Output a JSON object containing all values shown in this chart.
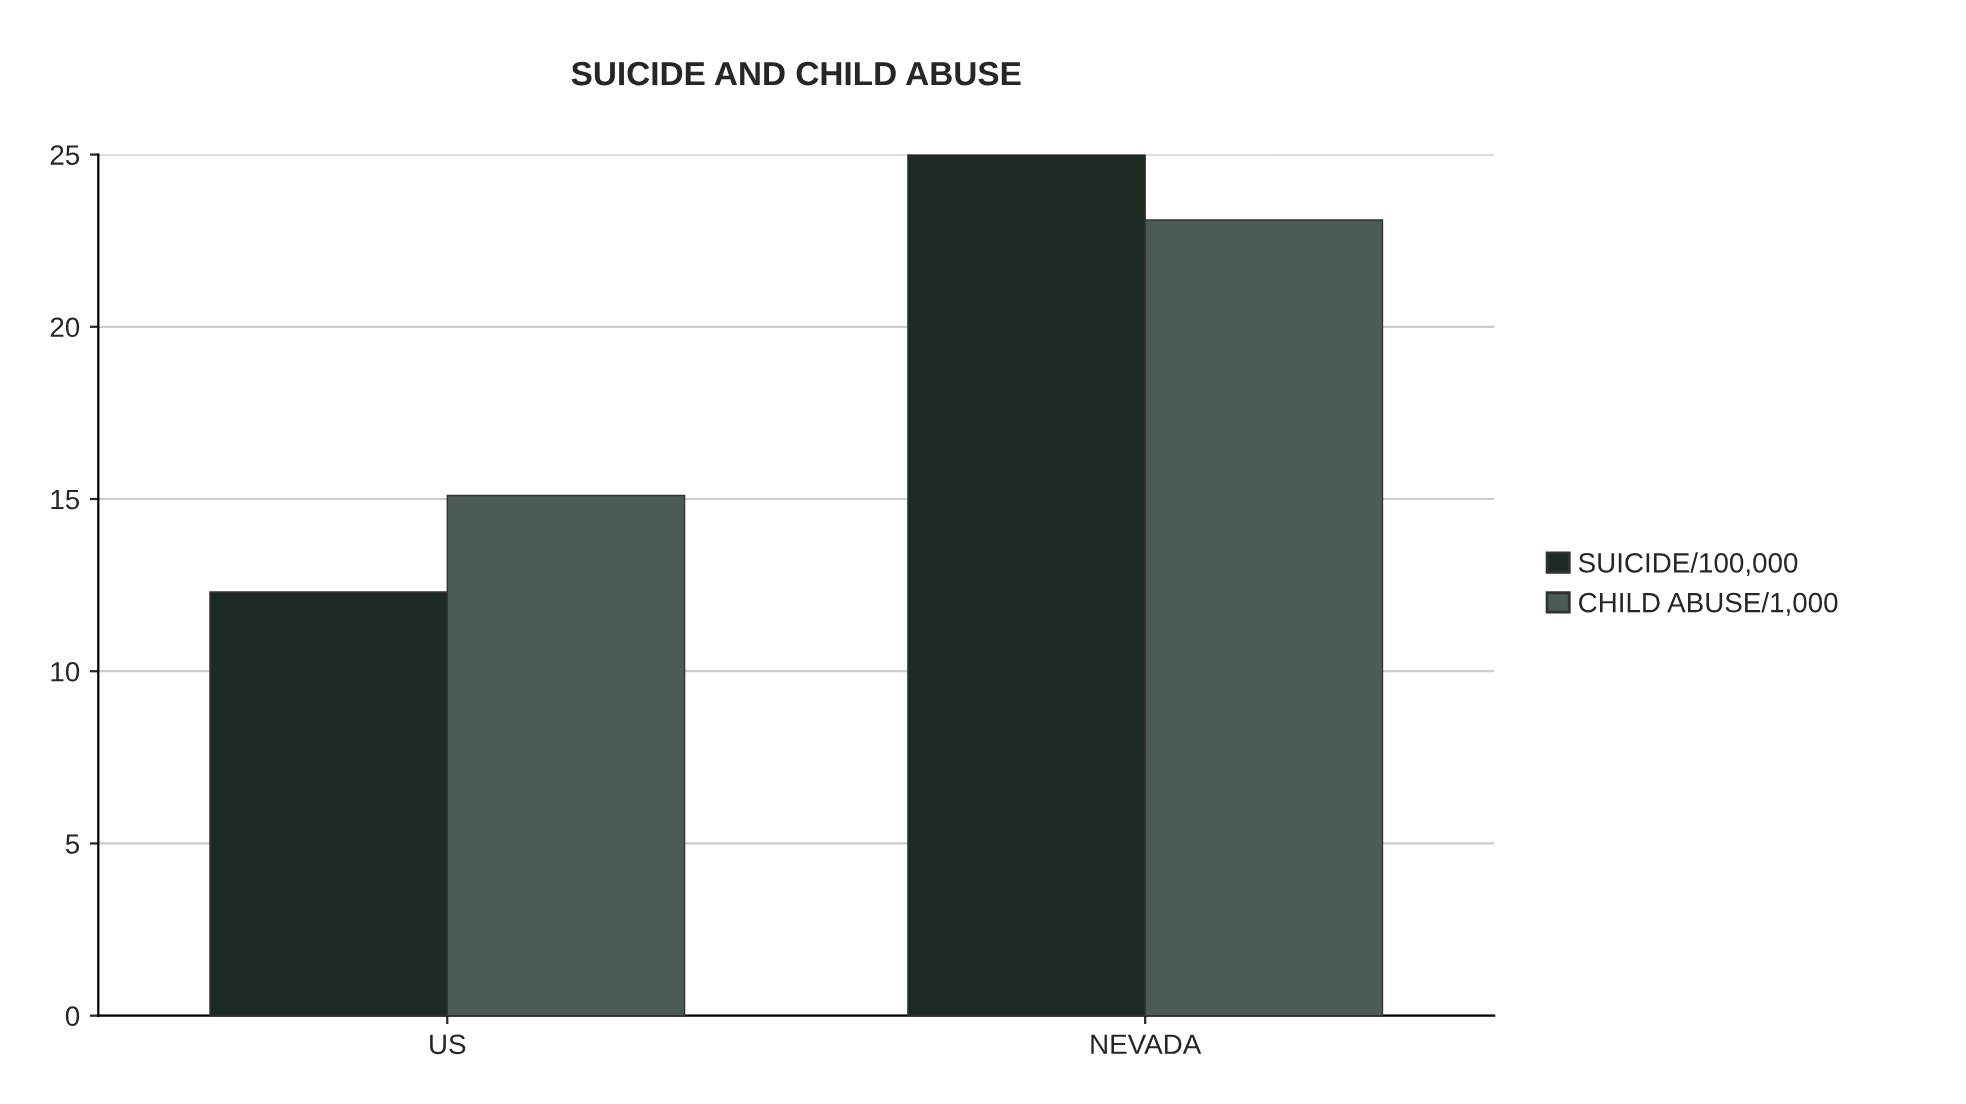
{
  "chart_data": {
    "type": "bar",
    "title": "SUICIDE AND CHILD ABUSE",
    "categories": [
      "US",
      "NEVADA"
    ],
    "series": [
      {
        "name": "SUICIDE/100,000",
        "color": "#1c2a22",
        "values": [
          12.3,
          25
        ]
      },
      {
        "name": "CHILD ABUSE/1,000",
        "color": "#4d5c52",
        "values": [
          15.1,
          23.1
        ]
      }
    ],
    "ylim": [
      0,
      25
    ],
    "yticks": [
      0,
      5,
      10,
      15,
      20,
      25
    ],
    "grid": "y",
    "legend": "right"
  }
}
